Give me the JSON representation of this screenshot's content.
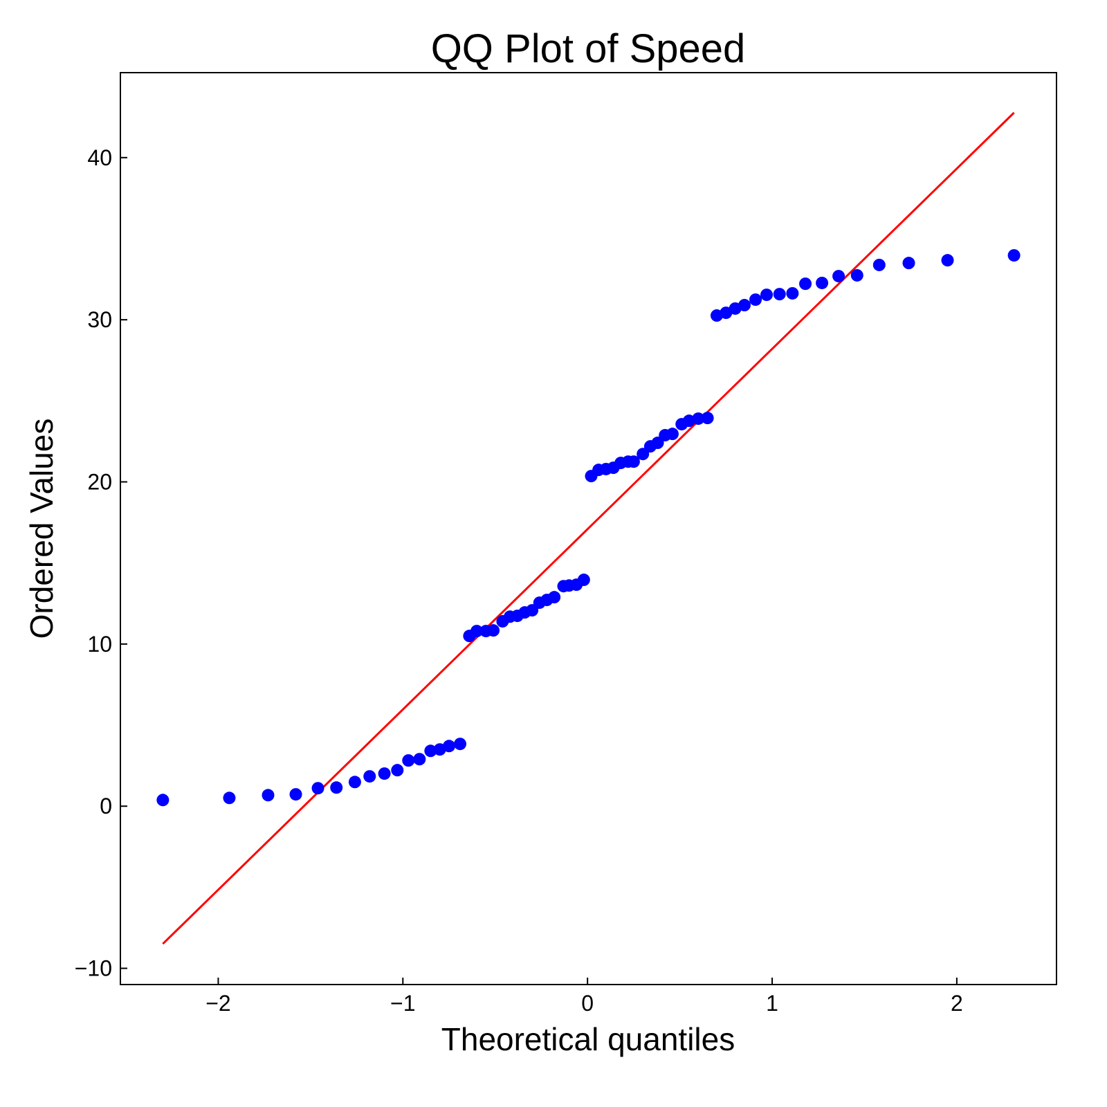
{
  "chart_data": {
    "type": "scatter",
    "title": "QQ Plot of Speed",
    "x_label": "Theoretical quantiles",
    "y_label": "Ordered Values",
    "x": [
      -2.3,
      -1.94,
      -1.73,
      -1.58,
      -1.46,
      -1.36,
      -1.26,
      -1.18,
      -1.1,
      -1.03,
      -0.97,
      -0.91,
      -0.85,
      -0.8,
      -0.75,
      -0.69,
      -0.64,
      -0.6,
      -0.55,
      -0.51,
      -0.46,
      -0.42,
      -0.38,
      -0.34,
      -0.3,
      -0.26,
      -0.22,
      -0.18,
      -0.13,
      -0.1,
      -0.06,
      -0.02,
      0.02,
      0.06,
      0.1,
      0.14,
      0.18,
      0.22,
      0.25,
      0.3,
      0.34,
      0.38,
      0.42,
      0.46,
      0.51,
      0.55,
      0.6,
      0.65,
      0.7,
      0.75,
      0.8,
      0.85,
      0.91,
      0.97,
      1.04,
      1.11,
      1.18,
      1.27,
      1.36,
      1.46,
      1.58,
      1.74,
      1.95,
      2.31
    ],
    "values": [
      0.38,
      0.51,
      0.68,
      0.73,
      1.11,
      1.15,
      1.49,
      1.84,
      2.01,
      2.22,
      2.82,
      2.9,
      3.41,
      3.5,
      3.71,
      3.84,
      10.5,
      10.8,
      10.8,
      10.84,
      11.4,
      11.69,
      11.74,
      11.95,
      12.08,
      12.55,
      12.72,
      12.89,
      13.57,
      13.61,
      13.66,
      13.96,
      20.36,
      20.74,
      20.79,
      20.87,
      21.17,
      21.25,
      21.25,
      21.72,
      22.19,
      22.41,
      22.88,
      22.96,
      23.56,
      23.77,
      23.9,
      23.94,
      30.26,
      30.43,
      30.69,
      30.9,
      31.24,
      31.54,
      31.58,
      31.63,
      32.22,
      32.27,
      32.69,
      32.74,
      33.38,
      33.5,
      33.67,
      33.97
    ],
    "color": "#0000ff",
    "fit_line": {
      "x": [
        -2.3,
        2.31
      ],
      "values": [
        -8.49,
        42.77
      ],
      "color": "#ff0000"
    },
    "xlim": [
      -2.53,
      2.54
    ],
    "ylim": [
      -11.0,
      45.24
    ],
    "xticks": [
      {
        "value": -2,
        "label": "−2"
      },
      {
        "value": -1,
        "label": "−1"
      },
      0,
      1,
      2
    ],
    "yticks": [
      {
        "value": -10,
        "label": "−10"
      },
      0,
      10,
      20,
      30,
      40
    ]
  }
}
